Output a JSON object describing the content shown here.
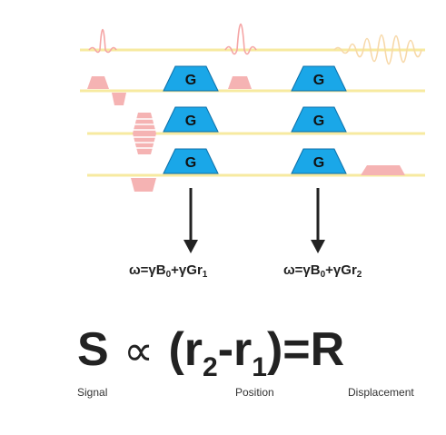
{
  "gradient_label": "G",
  "colors": {
    "rf_line": "#f7eaa0",
    "pulse": "#f5b3b3",
    "gradient": "#1aa7e8",
    "arrow": "#222222"
  },
  "formulas": {
    "left": {
      "prefix": "ω=γB",
      "sub_b": "0",
      "mid": "+γGr",
      "sub_r": "1"
    },
    "right": {
      "prefix": "ω=γB",
      "sub_b": "0",
      "mid": "+γGr",
      "sub_r": "2"
    }
  },
  "equation": {
    "s": "S",
    "prop": "∝",
    "open": " (r",
    "sub_r2": "2",
    "minus": "-r",
    "sub_r1": "1",
    "close": ")=R"
  },
  "captions": {
    "signal": "Signal",
    "position": "Position",
    "displacement": "Displacement"
  }
}
